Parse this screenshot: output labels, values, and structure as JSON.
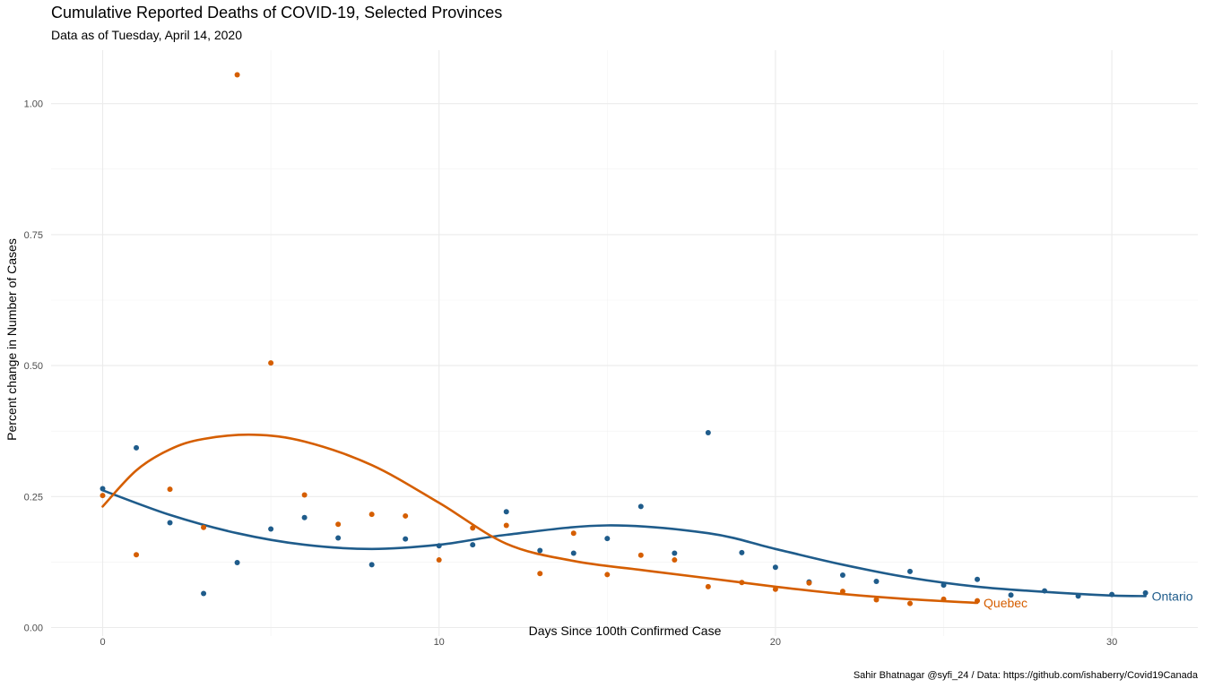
{
  "chart_data": {
    "type": "scatter",
    "title": "Cumulative Reported Deaths of COVID-19, Selected Provinces",
    "subtitle": "Data as of Tuesday, April 14, 2020",
    "xlabel": "Days Since 100th Confirmed Case",
    "ylabel": "Percent change in Number of Cases",
    "caption": "Sahir Bhatnagar @syfi_24 / Data: https://github.com/ishaberry/Covid19Canada",
    "xlim": [
      -1.5,
      32.5
    ],
    "ylim": [
      -0.02,
      1.1
    ],
    "x_ticks": [
      0,
      10,
      20,
      30
    ],
    "x_tick_labels": [
      "0",
      "10",
      "20",
      "30"
    ],
    "y_ticks": [
      0,
      0.25,
      0.5,
      0.75,
      1.0
    ],
    "y_tick_labels": [
      "0.00",
      "0.25",
      "0.50",
      "0.75",
      "1.00"
    ],
    "grid": true,
    "legend": "direct labels at end of smoothed lines",
    "series": [
      {
        "name": "Ontario",
        "color": "#1f5c8b",
        "x": [
          0,
          1,
          2,
          3,
          4,
          5,
          6,
          7,
          8,
          9,
          10,
          11,
          12,
          13,
          14,
          15,
          16,
          17,
          18,
          19,
          20,
          21,
          22,
          23,
          24,
          25,
          26,
          27,
          28,
          29,
          30,
          31
        ],
        "values": [
          0.265,
          0.343,
          0.2,
          0.065,
          0.124,
          0.188,
          0.21,
          0.171,
          0.12,
          0.169,
          0.156,
          0.158,
          0.221,
          0.147,
          0.142,
          0.17,
          0.231,
          0.142,
          0.372,
          0.143,
          0.115,
          0.087,
          0.1,
          0.088,
          0.107,
          0.081,
          0.092,
          0.062,
          0.07,
          0.06,
          0.063,
          0.066
        ],
        "smooth_x": [
          0,
          2,
          4,
          6,
          8,
          10,
          12,
          15,
          18,
          20,
          22,
          24,
          26,
          28,
          30,
          31
        ],
        "smooth_y": [
          0.262,
          0.215,
          0.18,
          0.158,
          0.15,
          0.158,
          0.177,
          0.195,
          0.18,
          0.15,
          0.12,
          0.095,
          0.078,
          0.068,
          0.061,
          0.06
        ]
      },
      {
        "name": "Quebec",
        "color": "#d55e00",
        "x": [
          0,
          1,
          2,
          3,
          4,
          5,
          6,
          7,
          8,
          9,
          10,
          11,
          12,
          13,
          14,
          15,
          16,
          17,
          18,
          19,
          20,
          21,
          22,
          23,
          24,
          25,
          26
        ],
        "values": [
          0.252,
          0.139,
          0.264,
          0.191,
          1.055,
          0.505,
          0.253,
          0.197,
          0.216,
          0.213,
          0.129,
          0.19,
          0.195,
          0.103,
          0.18,
          0.101,
          0.138,
          0.129,
          0.078,
          0.086,
          0.073,
          0.085,
          0.069,
          0.053,
          0.046,
          0.054,
          0.051
        ],
        "smooth_x": [
          0,
          1,
          2,
          3,
          4.5,
          6,
          8,
          10,
          12,
          14,
          16,
          18,
          20,
          22,
          24,
          26
        ],
        "smooth_y": [
          0.231,
          0.3,
          0.34,
          0.36,
          0.368,
          0.355,
          0.31,
          0.238,
          0.16,
          0.127,
          0.11,
          0.094,
          0.078,
          0.064,
          0.054,
          0.047
        ]
      }
    ]
  }
}
